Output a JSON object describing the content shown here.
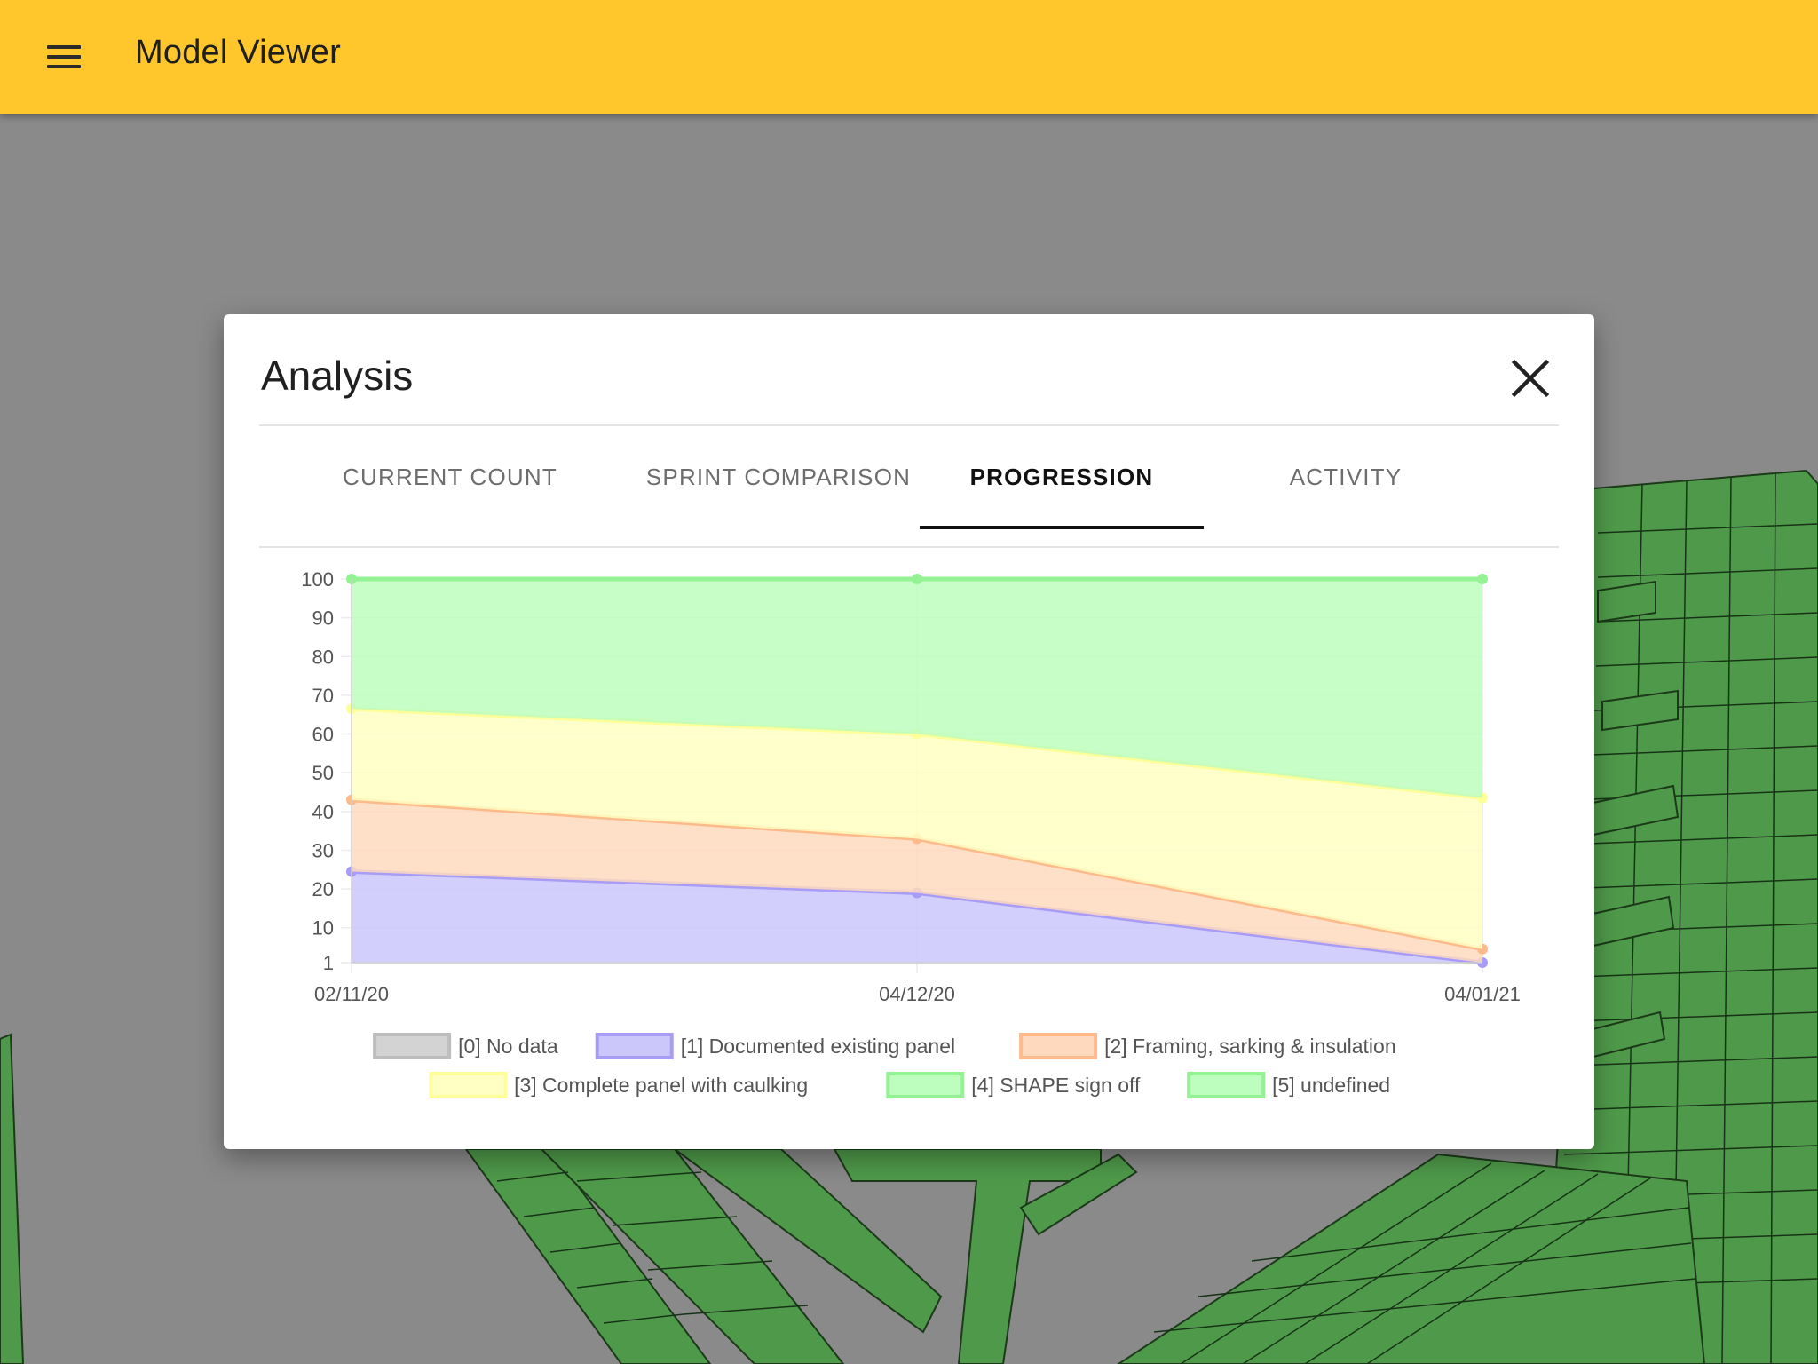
{
  "app": {
    "title": "Model Viewer"
  },
  "dialog": {
    "title": "Analysis",
    "tabs": [
      {
        "label": "CURRENT COUNT",
        "active": false
      },
      {
        "label": "SPRINT COMPARISON",
        "active": false
      },
      {
        "label": "PROGRESSION",
        "active": true
      },
      {
        "label": "ACTIVITY",
        "active": false
      }
    ]
  },
  "icons": {
    "menu": "menu-icon",
    "close": "close-icon"
  },
  "colors": {
    "appbar": "#ffc72c",
    "model_green": "#4f9a4a"
  },
  "chart_data": {
    "type": "area",
    "stacked": true,
    "x": [
      "02/11/20",
      "04/12/20",
      "04/01/21"
    ],
    "y_ticks": [
      "100",
      "90",
      "80",
      "70",
      "60",
      "50",
      "40",
      "30",
      "20",
      "10",
      "1"
    ],
    "ylim": [
      1,
      100
    ],
    "grid": true,
    "legend_position": "bottom",
    "series": [
      {
        "name": "[0] No data",
        "fill": "#d3d3d3",
        "line": "#bdbdbd",
        "values": [
          0,
          0,
          0
        ]
      },
      {
        "name": "[1] Documented existing panel",
        "fill": "#cbc7fb",
        "line": "#a99cf6",
        "values": [
          24.5,
          19,
          1
        ]
      },
      {
        "name": "[2] Framing, sarking & insulation",
        "fill": "#fed9bd",
        "line": "#fdba8a",
        "values": [
          18.5,
          14,
          3.5
        ]
      },
      {
        "name": "[3] Complete panel with caulking",
        "fill": "#ffffc3",
        "line": "#ffff99",
        "values": [
          23.5,
          27,
          39
        ]
      },
      {
        "name": "[4] SHAPE sign off",
        "fill": "#bdfdbd",
        "line": "#94f294",
        "values": [
          33.5,
          40,
          56.5
        ]
      },
      {
        "name": "[5] undefined",
        "fill": "#bdfdbd",
        "line": "#94f294",
        "values": [
          0,
          0,
          0
        ]
      }
    ]
  }
}
